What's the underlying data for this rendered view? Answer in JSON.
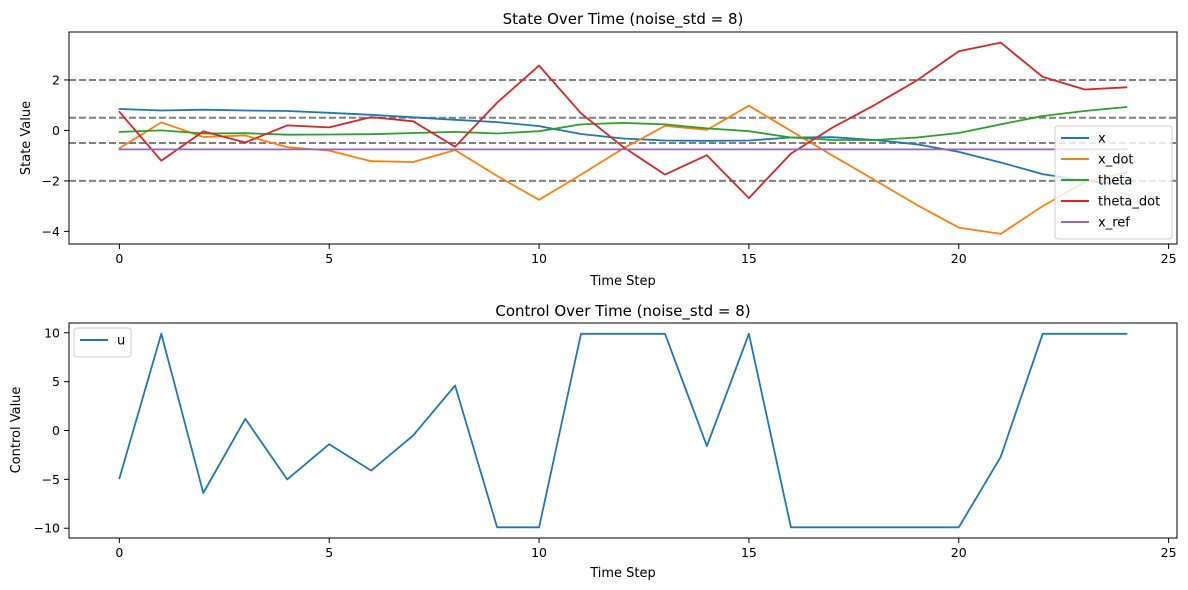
{
  "chart_data": [
    {
      "type": "line",
      "title": "State Over Time (noise_std = 8)",
      "xlabel": "Time Step",
      "ylabel": "State Value",
      "xlim": [
        -1.2,
        25.2
      ],
      "ylim": [
        -4.5,
        3.9
      ],
      "xticks": [
        0,
        5,
        10,
        15,
        20,
        25
      ],
      "xtick_labels": [
        "0",
        "5",
        "10",
        "15",
        "20",
        "25"
      ],
      "yticks": [
        -4,
        -2,
        0,
        2
      ],
      "ytick_labels": [
        "−4",
        "−2",
        "0",
        "2"
      ],
      "grid": false,
      "legend_position": "lower-right",
      "x": [
        0,
        1,
        2,
        3,
        4,
        5,
        6,
        7,
        8,
        9,
        10,
        11,
        12,
        13,
        14,
        15,
        16,
        17,
        18,
        19,
        20,
        21,
        22,
        23,
        24
      ],
      "series": [
        {
          "name": "x",
          "color": "#1f77b4",
          "values": [
            0.85,
            0.79,
            0.82,
            0.79,
            0.77,
            0.7,
            0.62,
            0.52,
            0.42,
            0.33,
            0.17,
            -0.14,
            -0.32,
            -0.4,
            -0.41,
            -0.4,
            -0.28,
            -0.27,
            -0.38,
            -0.55,
            -0.85,
            -1.27,
            -1.73,
            -2.0,
            -2.15
          ]
        },
        {
          "name": "x_dot",
          "color": "#ff7f0e",
          "values": [
            -0.71,
            0.32,
            -0.26,
            -0.2,
            -0.66,
            -0.8,
            -1.22,
            -1.25,
            -0.78,
            -1.8,
            -2.75,
            -1.75,
            -0.72,
            0.18,
            0.02,
            0.98,
            -0.02,
            -1.0,
            -1.97,
            -2.95,
            -3.85,
            -4.1,
            -3.0,
            -2.05,
            -1.65
          ]
        },
        {
          "name": "theta",
          "color": "#2ca02c",
          "values": [
            -0.06,
            0.0,
            -0.12,
            -0.11,
            -0.17,
            -0.16,
            -0.15,
            -0.1,
            -0.06,
            -0.12,
            -0.03,
            0.24,
            0.3,
            0.24,
            0.08,
            -0.03,
            -0.28,
            -0.38,
            -0.38,
            -0.28,
            -0.1,
            0.24,
            0.57,
            0.77,
            0.93
          ]
        },
        {
          "name": "theta_dot",
          "color": "#d62728",
          "values": [
            0.74,
            -1.2,
            -0.04,
            -0.48,
            0.2,
            0.12,
            0.53,
            0.36,
            -0.65,
            1.1,
            2.57,
            0.68,
            -0.65,
            -1.75,
            -0.98,
            -2.68,
            -0.92,
            0.12,
            1.01,
            1.98,
            3.14,
            3.48,
            2.12,
            1.62,
            1.71
          ]
        },
        {
          "name": "x_ref",
          "color": "#9467bd",
          "values": [
            -0.75,
            -0.75,
            -0.75,
            -0.75,
            -0.75,
            -0.75,
            -0.75,
            -0.75,
            -0.75,
            -0.75,
            -0.75,
            -0.75,
            -0.75,
            -0.75,
            -0.75,
            -0.75,
            -0.75,
            -0.75,
            -0.75,
            -0.75,
            -0.75,
            -0.75,
            -0.75,
            -0.75,
            -0.75
          ]
        }
      ],
      "reference_lines": [
        {
          "y": 2,
          "color": "#808080",
          "style": "dashed"
        },
        {
          "y": 0.5,
          "color": "#808080",
          "style": "dashed"
        },
        {
          "y": -0.5,
          "color": "#808080",
          "style": "dashed"
        },
        {
          "y": -2,
          "color": "#808080",
          "style": "dashed"
        }
      ]
    },
    {
      "type": "line",
      "title": "Control Over Time (noise_std = 8)",
      "xlabel": "Time Step",
      "ylabel": "Control Value",
      "xlim": [
        -1.2,
        25.2
      ],
      "ylim": [
        -11.0,
        11.0
      ],
      "xticks": [
        0,
        5,
        10,
        15,
        20,
        25
      ],
      "xtick_labels": [
        "0",
        "5",
        "10",
        "15",
        "20",
        "25"
      ],
      "yticks": [
        -10,
        -5,
        0,
        5,
        10
      ],
      "ytick_labels": [
        "−10",
        "−5",
        "0",
        "5",
        "10"
      ],
      "grid": false,
      "legend_position": "upper-left",
      "x": [
        0,
        1,
        2,
        3,
        4,
        5,
        6,
        7,
        8,
        9,
        10,
        11,
        12,
        13,
        14,
        15,
        16,
        17,
        18,
        19,
        20,
        21,
        22,
        23,
        24
      ],
      "series": [
        {
          "name": "u",
          "color": "#1f77b4",
          "values": [
            -4.9,
            9.9,
            -6.4,
            1.2,
            -5.0,
            -1.4,
            -4.1,
            -0.5,
            4.6,
            -9.9,
            -9.9,
            9.9,
            9.9,
            9.9,
            -1.6,
            9.9,
            -9.9,
            -9.9,
            -9.9,
            -9.9,
            -9.9,
            -2.7,
            9.9,
            9.9,
            9.9
          ]
        }
      ],
      "reference_lines": []
    }
  ]
}
